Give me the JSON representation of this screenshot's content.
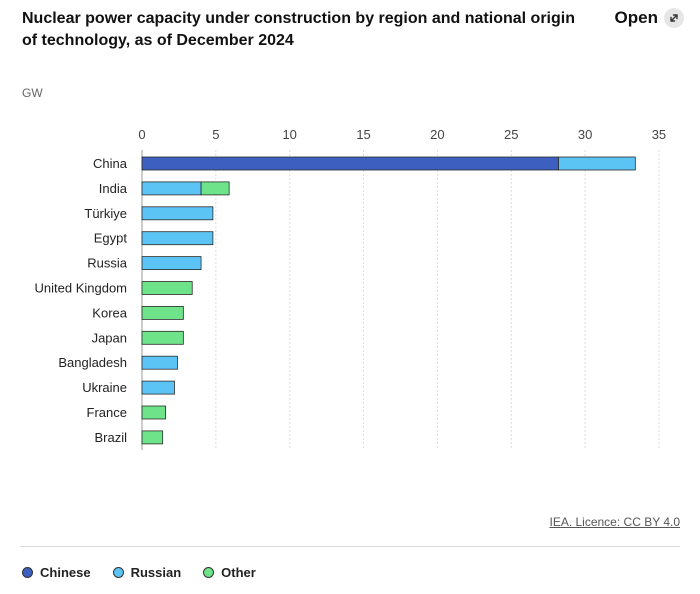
{
  "header": {
    "title": "Nuclear power capacity under construction by region and national origin of technology, as of December 2024",
    "open_label": "Open",
    "open_icon": "expand-icon"
  },
  "source_text": "IEA. Licence: CC BY 4.0",
  "chart_data": {
    "type": "bar",
    "orientation": "horizontal",
    "stacked": true,
    "ylabel": "GW",
    "xlim": [
      0,
      35
    ],
    "ticks": [
      "0",
      "5",
      "10",
      "15",
      "20",
      "25",
      "30",
      "35"
    ],
    "grid": true,
    "legend_position": "bottom",
    "categories": [
      "China",
      "India",
      "Türkiye",
      "Egypt",
      "Russia",
      "United Kingdom",
      "Korea",
      "Japan",
      "Bangladesh",
      "Ukraine",
      "France",
      "Brazil"
    ],
    "series": [
      {
        "name": "Chinese",
        "color": "#3d5fbf",
        "values": [
          28.2,
          0,
          0,
          0,
          0,
          0,
          0,
          0,
          0,
          0,
          0,
          0
        ]
      },
      {
        "name": "Russian",
        "color": "#5cc3f5",
        "values": [
          5.2,
          4.0,
          4.8,
          4.8,
          4.0,
          0,
          0,
          0,
          2.4,
          2.2,
          0,
          0
        ]
      },
      {
        "name": "Other",
        "color": "#6ee38a",
        "values": [
          0,
          1.9,
          0,
          0,
          0,
          3.4,
          2.8,
          2.8,
          0,
          0,
          1.6,
          1.4
        ]
      }
    ]
  }
}
